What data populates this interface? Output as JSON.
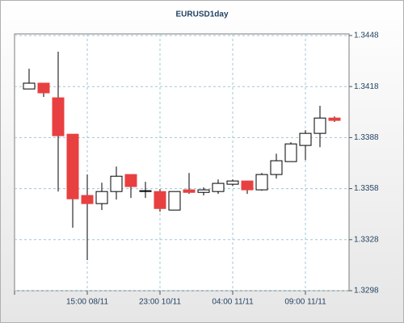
{
  "chart_data": {
    "type": "candlestick",
    "title": "EURUSD1day",
    "categories": [
      null,
      null,
      null,
      null,
      "15:00 08/11",
      null,
      null,
      null,
      null,
      "23:00 10/11",
      null,
      null,
      null,
      null,
      "04:00 11/11",
      null,
      null,
      null,
      null,
      "09:00 11/11",
      null,
      null
    ],
    "series": [
      {
        "open": [
          1.34166,
          1.342,
          1.34114,
          1.339,
          1.3354,
          1.33492,
          1.33563,
          1.33663,
          1.33563,
          1.33563,
          1.33454,
          1.33573,
          1.33558,
          1.33563,
          1.33606,
          1.33625,
          1.33573,
          1.33663,
          1.33739,
          1.33834,
          1.33905,
          1.33995
        ],
        "high": [
          1.34285,
          1.342,
          1.34385,
          1.339,
          1.33663,
          1.33615,
          1.3371,
          1.33663,
          1.3362,
          1.33577,
          1.33563,
          1.33672,
          1.33587,
          1.33634,
          1.33634,
          1.33625,
          1.33672,
          1.33786,
          1.33853,
          1.33924,
          1.34067,
          1.34005
        ],
        "low": [
          1.34166,
          1.34119,
          1.33563,
          1.3335,
          1.3316,
          1.33454,
          1.33516,
          1.33525,
          1.33525,
          1.33444,
          1.33454,
          1.33549,
          1.3354,
          1.33549,
          1.33596,
          1.33549,
          1.33568,
          1.33639,
          1.33739,
          1.33748,
          1.33824,
          1.33972
        ],
        "close": [
          1.342,
          1.34143,
          1.33891,
          1.3352,
          1.33492,
          1.33563,
          1.33653,
          1.33592,
          1.33568,
          1.33463,
          1.33563,
          1.33558,
          1.33573,
          1.33611,
          1.33625,
          1.33573,
          1.33663,
          1.33744,
          1.33843,
          1.33905,
          1.33995,
          1.33981
        ]
      }
    ],
    "up_color": "#ffffff",
    "down_color": "#e84040",
    "ylim": [
      1.3298,
      1.3448
    ],
    "yticks": [
      1.3298,
      1.3328,
      1.3358,
      1.3388,
      1.3418,
      1.3448
    ],
    "grid": true
  }
}
